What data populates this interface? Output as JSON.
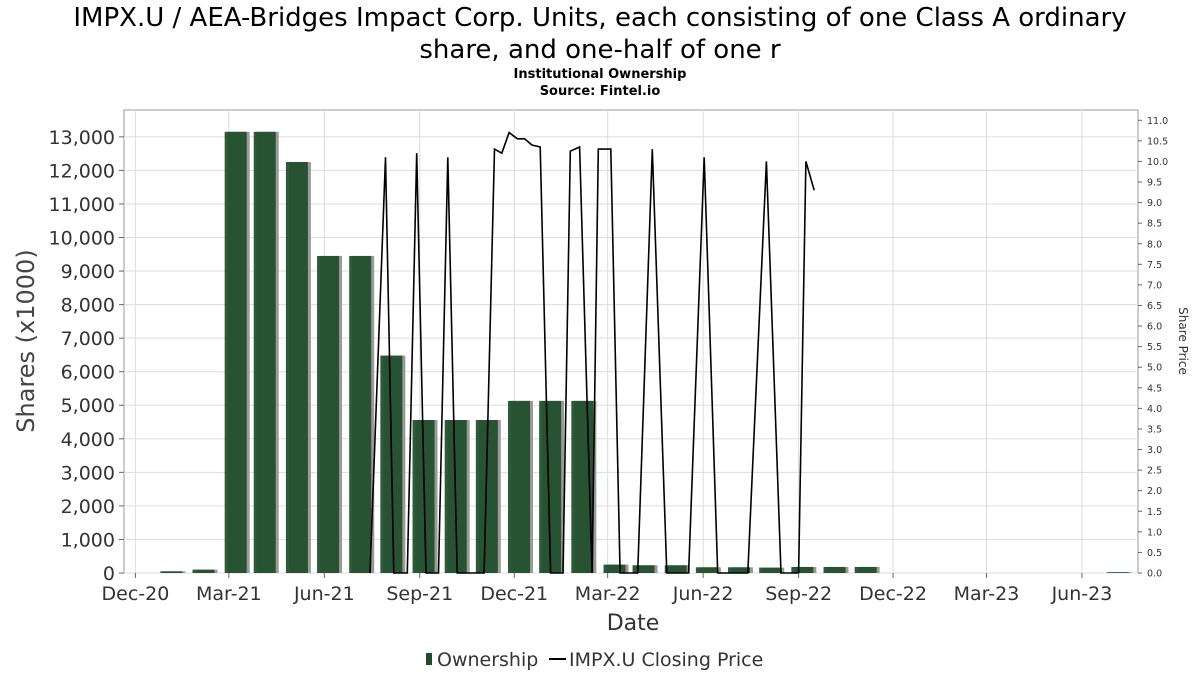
{
  "chart_data": {
    "type": "bar",
    "title_line1": "IMPX.U / AEA-Bridges Impact Corp. Units, each consisting of one Class A ordinary",
    "title_line2": "share, and one-half of one r",
    "subtitle1": "Institutional Ownership",
    "subtitle2": "Source: Fintel.io",
    "xlabel": "Date",
    "ylabel": "Shares (x1000)",
    "y2label": "Share Price",
    "ylim": [
      0,
      13800
    ],
    "y2lim": [
      0,
      11.25
    ],
    "y_ticks": [
      "0",
      "1,000",
      "2,000",
      "3,000",
      "4,000",
      "5,000",
      "6,000",
      "7,000",
      "8,000",
      "9,000",
      "10,000",
      "11,000",
      "12,000",
      "13,000"
    ],
    "y2_ticks": [
      "0.0",
      "0.5",
      "1.0",
      "1.5",
      "2.0",
      "2.5",
      "3.0",
      "3.5",
      "4.0",
      "4.5",
      "5.0",
      "5.5",
      "6.0",
      "6.5",
      "7.0",
      "7.5",
      "8.0",
      "8.5",
      "9.0",
      "9.5",
      "10.0",
      "10.5",
      "11.0"
    ],
    "x_ticks": [
      {
        "label": "Dec-20",
        "date": "2020-12-01"
      },
      {
        "label": "Mar-21",
        "date": "2021-03-01"
      },
      {
        "label": "Jun-21",
        "date": "2021-06-01"
      },
      {
        "label": "Sep-21",
        "date": "2021-09-01"
      },
      {
        "label": "Dec-21",
        "date": "2021-12-01"
      },
      {
        "label": "Mar-22",
        "date": "2022-03-01"
      },
      {
        "label": "Jun-22",
        "date": "2022-06-01"
      },
      {
        "label": "Sep-22",
        "date": "2022-09-01"
      },
      {
        "label": "Dec-22",
        "date": "2022-12-01"
      },
      {
        "label": "Mar-23",
        "date": "2023-03-01"
      },
      {
        "label": "Jun-23",
        "date": "2023-06-01"
      }
    ],
    "x_range": [
      "2020-11-20",
      "2023-07-25"
    ],
    "legend": {
      "position": "bottom",
      "ownership_label": "Ownership",
      "price_label": "IMPX.U Closing Price"
    },
    "colors": {
      "bar": "#1e4d2b",
      "bar_shadow": "#9a9a9a",
      "price_line": "#000000",
      "grid": "#dddddd"
    },
    "ownership": [
      {
        "date": "2020-12-25",
        "value": 50
      },
      {
        "date": "2021-01-25",
        "value": 100
      },
      {
        "date": "2021-02-25",
        "value": 13150
      },
      {
        "date": "2021-03-25",
        "value": 13150
      },
      {
        "date": "2021-04-25",
        "value": 12250
      },
      {
        "date": "2021-05-25",
        "value": 9450
      },
      {
        "date": "2021-06-25",
        "value": 9450
      },
      {
        "date": "2021-07-25",
        "value": 6480
      },
      {
        "date": "2021-08-25",
        "value": 4560
      },
      {
        "date": "2021-09-25",
        "value": 4560
      },
      {
        "date": "2021-10-25",
        "value": 4560
      },
      {
        "date": "2021-11-25",
        "value": 5130
      },
      {
        "date": "2021-12-25",
        "value": 5130
      },
      {
        "date": "2022-01-25",
        "value": 5130
      },
      {
        "date": "2022-02-25",
        "value": 250
      },
      {
        "date": "2022-03-25",
        "value": 230
      },
      {
        "date": "2022-04-25",
        "value": 230
      },
      {
        "date": "2022-05-25",
        "value": 170
      },
      {
        "date": "2022-06-25",
        "value": 170
      },
      {
        "date": "2022-07-25",
        "value": 160
      },
      {
        "date": "2022-08-25",
        "value": 180
      },
      {
        "date": "2022-09-25",
        "value": 180
      },
      {
        "date": "2022-10-25",
        "value": 180
      },
      {
        "date": "2023-06-25",
        "value": 20
      }
    ],
    "price": [
      {
        "date": "2021-07-15",
        "value": 0.0
      },
      {
        "date": "2021-07-30",
        "value": 10.1
      },
      {
        "date": "2021-08-07",
        "value": 0.0
      },
      {
        "date": "2021-08-20",
        "value": 0.0
      },
      {
        "date": "2021-08-29",
        "value": 10.2
      },
      {
        "date": "2021-09-07",
        "value": 0.0
      },
      {
        "date": "2021-09-19",
        "value": 0.0
      },
      {
        "date": "2021-09-28",
        "value": 10.1
      },
      {
        "date": "2021-10-07",
        "value": 0.0
      },
      {
        "date": "2021-11-02",
        "value": 0.0
      },
      {
        "date": "2021-11-12",
        "value": 10.3
      },
      {
        "date": "2021-11-19",
        "value": 10.2
      },
      {
        "date": "2021-11-26",
        "value": 10.7
      },
      {
        "date": "2021-12-04",
        "value": 10.55
      },
      {
        "date": "2021-12-11",
        "value": 10.55
      },
      {
        "date": "2021-12-18",
        "value": 10.4
      },
      {
        "date": "2021-12-26",
        "value": 10.35
      },
      {
        "date": "2022-01-05",
        "value": 0.0
      },
      {
        "date": "2022-01-17",
        "value": 0.0
      },
      {
        "date": "2022-01-24",
        "value": 10.25
      },
      {
        "date": "2022-02-02",
        "value": 10.35
      },
      {
        "date": "2022-02-14",
        "value": 0.0
      },
      {
        "date": "2022-02-20",
        "value": 10.3
      },
      {
        "date": "2022-03-04",
        "value": 10.3
      },
      {
        "date": "2022-03-13",
        "value": 0.0
      },
      {
        "date": "2022-03-30",
        "value": 0.0
      },
      {
        "date": "2022-04-13",
        "value": 10.3
      },
      {
        "date": "2022-04-27",
        "value": 0.0
      },
      {
        "date": "2022-05-18",
        "value": 0.0
      },
      {
        "date": "2022-06-02",
        "value": 10.1
      },
      {
        "date": "2022-06-15",
        "value": 0.0
      },
      {
        "date": "2022-07-14",
        "value": 0.0
      },
      {
        "date": "2022-08-01",
        "value": 10.0
      },
      {
        "date": "2022-08-15",
        "value": 0.0
      },
      {
        "date": "2022-09-01",
        "value": 0.0
      },
      {
        "date": "2022-09-08",
        "value": 10.0
      },
      {
        "date": "2022-09-16",
        "value": 9.3
      }
    ]
  }
}
